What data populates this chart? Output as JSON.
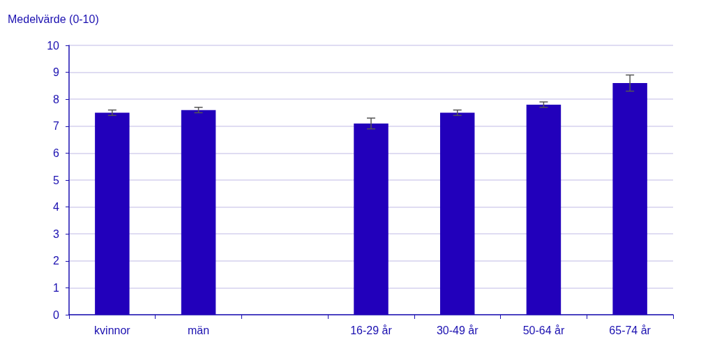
{
  "chart_data": {
    "type": "bar",
    "ylabel": "Medelvärde (0-10)",
    "categories": [
      "kvinnor",
      "män",
      null,
      "16-29 år",
      "30-49 år",
      "50-64 år",
      "65-74 år"
    ],
    "values": [
      7.5,
      7.6,
      null,
      7.1,
      7.5,
      7.8,
      8.6
    ],
    "errors": [
      [
        7.4,
        7.6
      ],
      [
        7.5,
        7.7
      ],
      null,
      [
        6.9,
        7.3
      ],
      [
        7.4,
        7.6
      ],
      [
        7.7,
        7.9
      ],
      [
        8.3,
        8.9
      ]
    ],
    "color": "#2200bb",
    "ylim": [
      0,
      10
    ],
    "yticks": [
      0,
      1,
      2,
      3,
      4,
      5,
      6,
      7,
      8,
      9,
      10
    ],
    "grid": "y"
  }
}
